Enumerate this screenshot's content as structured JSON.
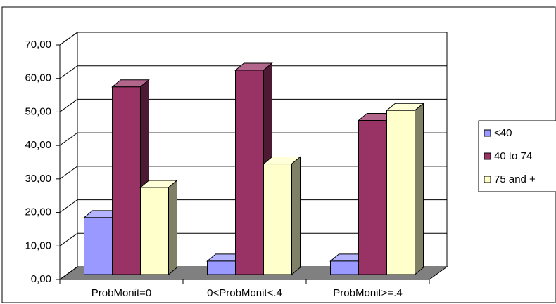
{
  "chart_data": {
    "type": "bar3d",
    "categories": [
      "ProbMonit=0",
      "0<ProbMonit<.4",
      "ProbMonit>=.4"
    ],
    "series": [
      {
        "name": "<40",
        "color": "#9999ff",
        "values": [
          17,
          4,
          4
        ]
      },
      {
        "name": "40 to 74",
        "color": "#993366",
        "values": [
          56,
          61,
          46
        ]
      },
      {
        "name": "75 and +",
        "color": "#ffffcc",
        "values": [
          26,
          33,
          49
        ]
      }
    ],
    "ylim": [
      0,
      70
    ],
    "yticks": [
      {
        "value": 0,
        "label": "0,00"
      },
      {
        "value": 10,
        "label": "10,00"
      },
      {
        "value": 20,
        "label": "20,00"
      },
      {
        "value": 30,
        "label": "30,00"
      },
      {
        "value": 40,
        "label": "40,00"
      },
      {
        "value": 50,
        "label": "50,00"
      },
      {
        "value": 60,
        "label": "60,00"
      },
      {
        "value": 70,
        "label": "70,00"
      }
    ],
    "grid": true,
    "legend": "right"
  }
}
